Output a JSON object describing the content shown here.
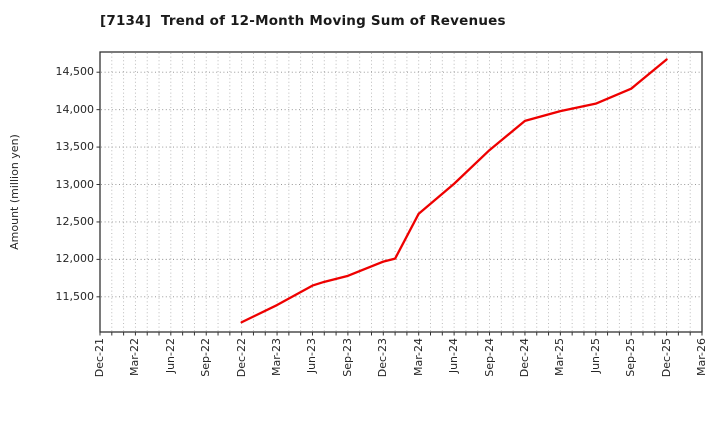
{
  "title": "[7134]  Trend of 12-Month Moving Sum of Revenues",
  "colors": {
    "line": "#ee0000",
    "axis": "#333333",
    "grid_major": "#8a8a8a",
    "grid_minor": "#b4b4b4",
    "text": "#262626",
    "background": "#ffffff"
  },
  "chart_data": {
    "type": "line",
    "title": "[7134]  Trend of 12-Month Moving Sum of Revenues",
    "xlabel": "",
    "ylabel": "Amount (million yen)",
    "legend_position": "none",
    "grid": {
      "horizontal": "dotted at every 500",
      "vertical": "dotted monthly"
    },
    "x_axis": {
      "unit": "month",
      "start_label": "Dec-21",
      "end_label": "Mar-26",
      "months_total": 51,
      "tick_every_months": 3,
      "tick_labels": [
        "Dec-21",
        "Mar-22",
        "Jun-22",
        "Sep-22",
        "Dec-22",
        "Mar-23",
        "Jun-23",
        "Sep-23",
        "Dec-23",
        "Mar-24",
        "Jun-24",
        "Sep-24",
        "Dec-24",
        "Mar-25",
        "Jun-25",
        "Sep-25",
        "Dec-25",
        "Mar-26"
      ]
    },
    "y_axis": {
      "min": 11030,
      "max": 14770,
      "tick_values": [
        11500,
        12000,
        12500,
        13000,
        13500,
        14000,
        14500
      ]
    },
    "series": [
      {
        "name": "12-Month Moving Sum of Revenues",
        "color": "#ee0000",
        "points": [
          {
            "x": "Dec-22",
            "month_index": 12,
            "value": 11160
          },
          {
            "x": "Mar-23",
            "month_index": 15,
            "value": 11390
          },
          {
            "x": "Jun-23",
            "month_index": 18,
            "value": 11650
          },
          {
            "x": "Jul-23",
            "month_index": 19,
            "value": 11700
          },
          {
            "x": "Sep-23",
            "month_index": 21,
            "value": 11780
          },
          {
            "x": "Dec-23",
            "month_index": 24,
            "value": 11970
          },
          {
            "x": "Jan-24",
            "month_index": 25,
            "value": 12010
          },
          {
            "x": "Mar-24",
            "month_index": 27,
            "value": 12610
          },
          {
            "x": "Jun-24",
            "month_index": 30,
            "value": 13010
          },
          {
            "x": "Sep-24",
            "month_index": 33,
            "value": 13460
          },
          {
            "x": "Dec-24",
            "month_index": 36,
            "value": 13850
          },
          {
            "x": "Mar-25",
            "month_index": 39,
            "value": 13980
          },
          {
            "x": "Jun-25",
            "month_index": 42,
            "value": 14080
          },
          {
            "x": "Sep-25",
            "month_index": 45,
            "value": 14280
          },
          {
            "x": "Dec-25",
            "month_index": 48,
            "value": 14670
          }
        ]
      }
    ]
  }
}
